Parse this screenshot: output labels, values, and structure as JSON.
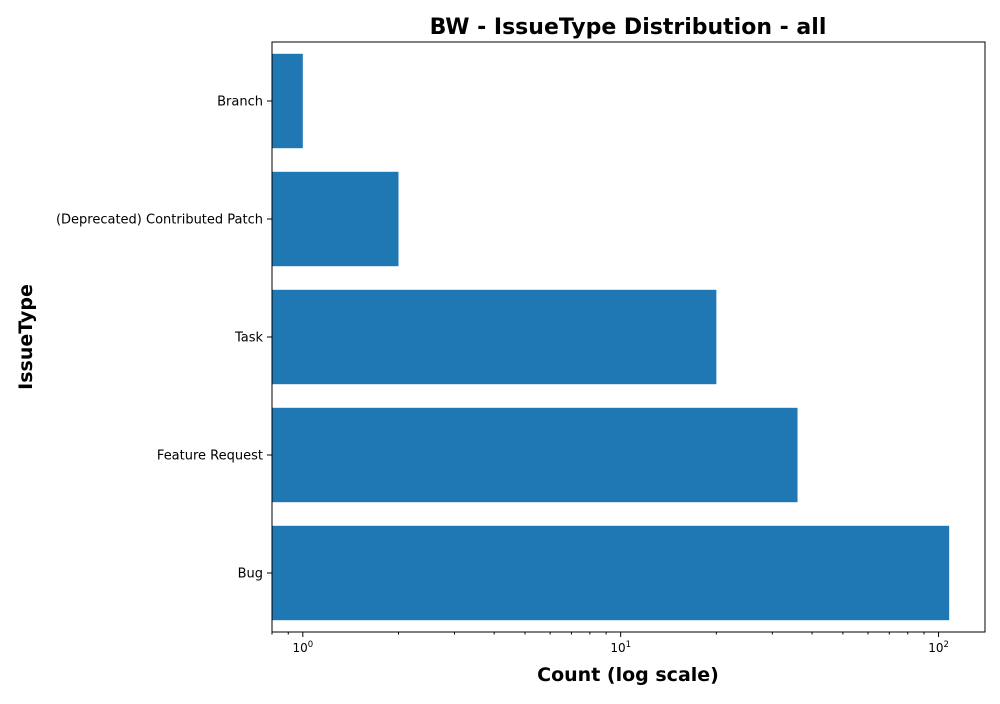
{
  "chart_data": {
    "type": "bar",
    "orientation": "horizontal",
    "title": "BW - IssueType Distribution - all",
    "xlabel": "Count (log scale)",
    "ylabel": "IssueType",
    "xscale": "log",
    "xlim": [
      0.8,
      140
    ],
    "x_ticks": [
      {
        "value": 1,
        "base": "10",
        "exp": "0"
      },
      {
        "value": 10,
        "base": "10",
        "exp": "1"
      },
      {
        "value": 100,
        "base": "10",
        "exp": "2"
      }
    ],
    "categories": [
      "Branch",
      "(Deprecated) Contributed Patch",
      "Task",
      "Feature Request",
      "Bug"
    ],
    "values": [
      1,
      2,
      20,
      36,
      108
    ],
    "bar_color": "#1f77b4",
    "grid": false,
    "legend": "none"
  }
}
